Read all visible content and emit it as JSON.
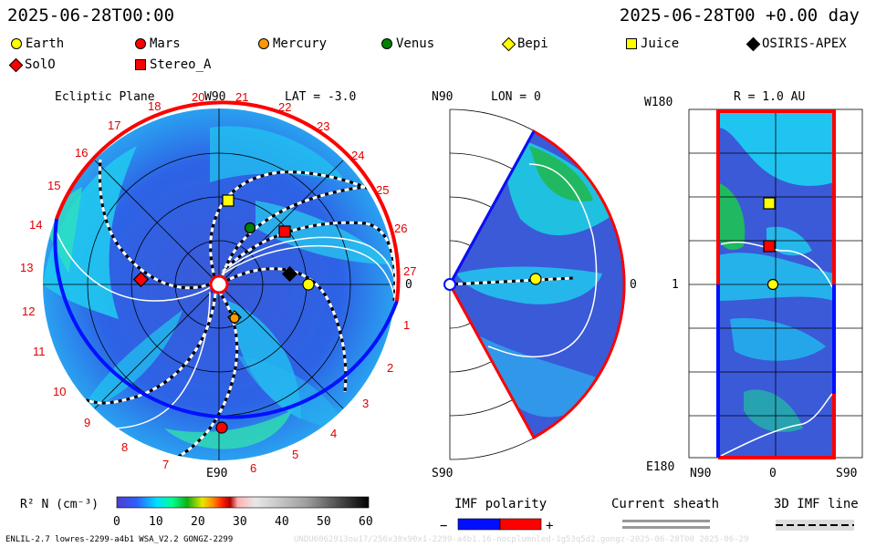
{
  "header": {
    "timestamp_left": "2025-06-28T00:00",
    "timestamp_right": "2025-06-28T00 +0.00 day"
  },
  "legend": [
    {
      "label": "Earth",
      "color": "#ffff00",
      "shape": "circle"
    },
    {
      "label": "Mars",
      "color": "#ff0000",
      "shape": "circle"
    },
    {
      "label": "Mercury",
      "color": "#ff9900",
      "shape": "circle"
    },
    {
      "label": "Venus",
      "color": "#008000",
      "shape": "circle"
    },
    {
      "label": "Bepi",
      "color": "#ffff00",
      "shape": "diamond"
    },
    {
      "label": "Juice",
      "color": "#ffff00",
      "shape": "square"
    },
    {
      "label": "OSIRIS-APEX",
      "color": "#000000",
      "shape": "diamond"
    },
    {
      "label": "SolO",
      "color": "#ff0000",
      "shape": "diamond"
    },
    {
      "label": "Stereo_A",
      "color": "#ff0000",
      "shape": "square"
    }
  ],
  "panels": {
    "ecliptic": {
      "title": "Ecliptic Plane",
      "lat_label": "LAT = -3.0",
      "top_label": "W90",
      "bottom_label": "E90",
      "right_label": "0",
      "sectors": [
        "20",
        "21",
        "22",
        "23",
        "24",
        "25",
        "26",
        "27",
        "1",
        "2",
        "3",
        "4",
        "5",
        "6",
        "7",
        "8",
        "9",
        "10",
        "11",
        "12",
        "13",
        "14",
        "15",
        "16",
        "17",
        "18",
        "19"
      ]
    },
    "meridional": {
      "lon_label": "LON = 0",
      "top_label": "N90",
      "bottom_label": "S90",
      "right_label": "0"
    },
    "radial": {
      "title": "R = 1.0 AU",
      "top_label": "W180",
      "bottom_label": "E180",
      "mid_label": "1",
      "x_labels": [
        "N90",
        "0",
        "S90"
      ]
    }
  },
  "colorbar": {
    "label": "R² N (cm⁻³)",
    "ticks": [
      "0",
      "10",
      "20",
      "30",
      "40",
      "50",
      "60"
    ],
    "range": [
      0,
      60
    ]
  },
  "imf": {
    "polarity_title": "IMF polarity",
    "minus": "−",
    "plus": "+",
    "sheath_title": "Current sheath",
    "line_title": "3D IMF line"
  },
  "footer": {
    "model": "ENLIL-2.7 lowres-2299-a4b1 WSA_V2.2 GONGZ-2299",
    "watermark": "UNDU6062913ou17/256x30x90x1-2299-a4b1.16-nocplumnled-1g53q5d2.gongz-2025-06-28T00  2025-06-29"
  },
  "chart_data": [
    {
      "type": "heatmap",
      "title": "Ecliptic Plane",
      "subtitle": "LAT = -3.0",
      "colorbar_range": [
        0,
        60
      ],
      "bodies": [
        {
          "name": "Earth",
          "lon_deg": 0,
          "r_au": 1.0
        },
        {
          "name": "Mars",
          "lon_deg": -92,
          "r_au": 1.5
        },
        {
          "name": "Mercury",
          "lon_deg": -85,
          "r_au": 0.35
        },
        {
          "name": "Venus",
          "lon_deg": 65,
          "r_au": 0.72
        },
        {
          "name": "Bepi",
          "lon_deg": -88,
          "r_au": 0.38
        },
        {
          "name": "Juice",
          "lon_deg": 88,
          "r_au": 0.95
        },
        {
          "name": "OSIRIS-APEX",
          "lon_deg": -2,
          "r_au": 0.82
        },
        {
          "name": "SolO",
          "lon_deg": 177,
          "r_au": 0.88
        },
        {
          "name": "Stereo_A",
          "lon_deg": 40,
          "r_au": 0.97
        }
      ]
    },
    {
      "type": "heatmap",
      "title": "",
      "subtitle": "LON = 0",
      "lat_range": [
        -60,
        60
      ],
      "bodies": [
        {
          "name": "Earth",
          "lat_deg": -3,
          "r_au": 1.0
        }
      ]
    },
    {
      "type": "heatmap",
      "title": "R = 1.0 AU",
      "x_range": [
        90,
        -90
      ],
      "y_range": [
        -180,
        180
      ],
      "bodies": [
        {
          "name": "Earth",
          "lat_deg": -3,
          "lon_deg": 0
        },
        {
          "name": "Stereo_A",
          "lat_deg": 5,
          "lon_deg": 40
        },
        {
          "name": "Juice",
          "lat_deg": 5,
          "lon_deg": 88
        }
      ]
    }
  ]
}
